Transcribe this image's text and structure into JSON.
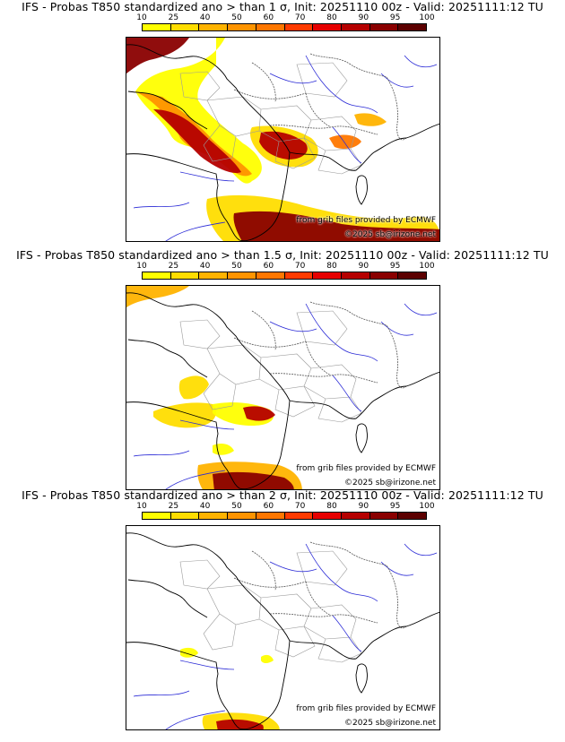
{
  "legend": {
    "ticks": [
      "10",
      "25",
      "40",
      "50",
      "60",
      "70",
      "80",
      "90",
      "95",
      "100"
    ],
    "colors": [
      "#ffff00",
      "#ffdd00",
      "#ffb300",
      "#ff9400",
      "#ff7700",
      "#ff3b00",
      "#e60000",
      "#b50000",
      "#8a0000",
      "#5c0000"
    ]
  },
  "panels": [
    {
      "title": "IFS - Probas T850  standardized ano > than 1 σ, Init: 20251110 00z - Valid: 20251111:12 TU",
      "source": "from grib files provided by ECMWF",
      "copyright": "©2025 sb@irizone.net",
      "level": 1
    },
    {
      "title": "IFS - Probas T850  standardized ano > than 1.5 σ, Init: 20251110 00z - Valid: 20251111:12 TU",
      "source": "from grib files provided by ECMWF",
      "copyright": "©2025 sb@irizone.net",
      "level": 2
    },
    {
      "title": "IFS - Probas T850  standardized ano > than 2 σ, Init: 20251110 00z - Valid: 20251111:12 TU",
      "source": "from grib files provided by ECMWF",
      "copyright": "©2025 sb@irizone.net",
      "level": 3
    }
  ]
}
